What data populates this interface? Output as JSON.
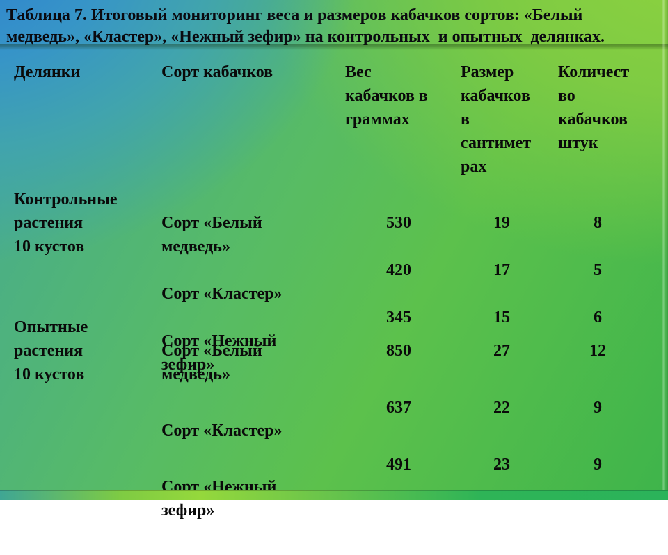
{
  "slide": {
    "title": "Таблица 7. Итоговый мониторинг веса и размеров кабачков сортов: «Белый\nмедведь», «Кластер», «Нежный зефир» на контрольных  и опытных  делянках.",
    "colors": {
      "background_blue": "#2d7fd1",
      "background_teal": "#41a4ad",
      "background_yellow_green": "#8dd23f",
      "background_green": "#3eb44b",
      "text": "#0a0a0a"
    }
  },
  "table": {
    "columns": [
      "Делянки",
      "Сорт кабачков",
      "Вес\nкабачков в\nграммах",
      "Размер\nкабачков\nв\nсантимет\nрах",
      "Количест\nво\nкабачков\nштук"
    ],
    "rows": [
      {
        "plot": "Контрольные\nрастения\n10 кустов",
        "varieties": [
          "Сорт «Белый\nмедведь»",
          "Сорт «Кластер»",
          "Сорт «Нежный\nзефир»"
        ],
        "weights": [
          "530",
          "420",
          "345"
        ],
        "sizes": [
          "19",
          "17",
          "15"
        ],
        "counts": [
          "8",
          "5",
          "6"
        ]
      },
      {
        "plot": "Опытные\nрастения\n10 кустов",
        "varieties": [
          "Сорт «Белый\nмедведь»",
          "Сорт «Кластер»",
          "Сорт «Нежный\nзефир»"
        ],
        "weights": [
          "850",
          "637",
          "491"
        ],
        "sizes": [
          "27",
          "22",
          "23"
        ],
        "counts": [
          "12",
          "9",
          "9"
        ]
      }
    ]
  }
}
